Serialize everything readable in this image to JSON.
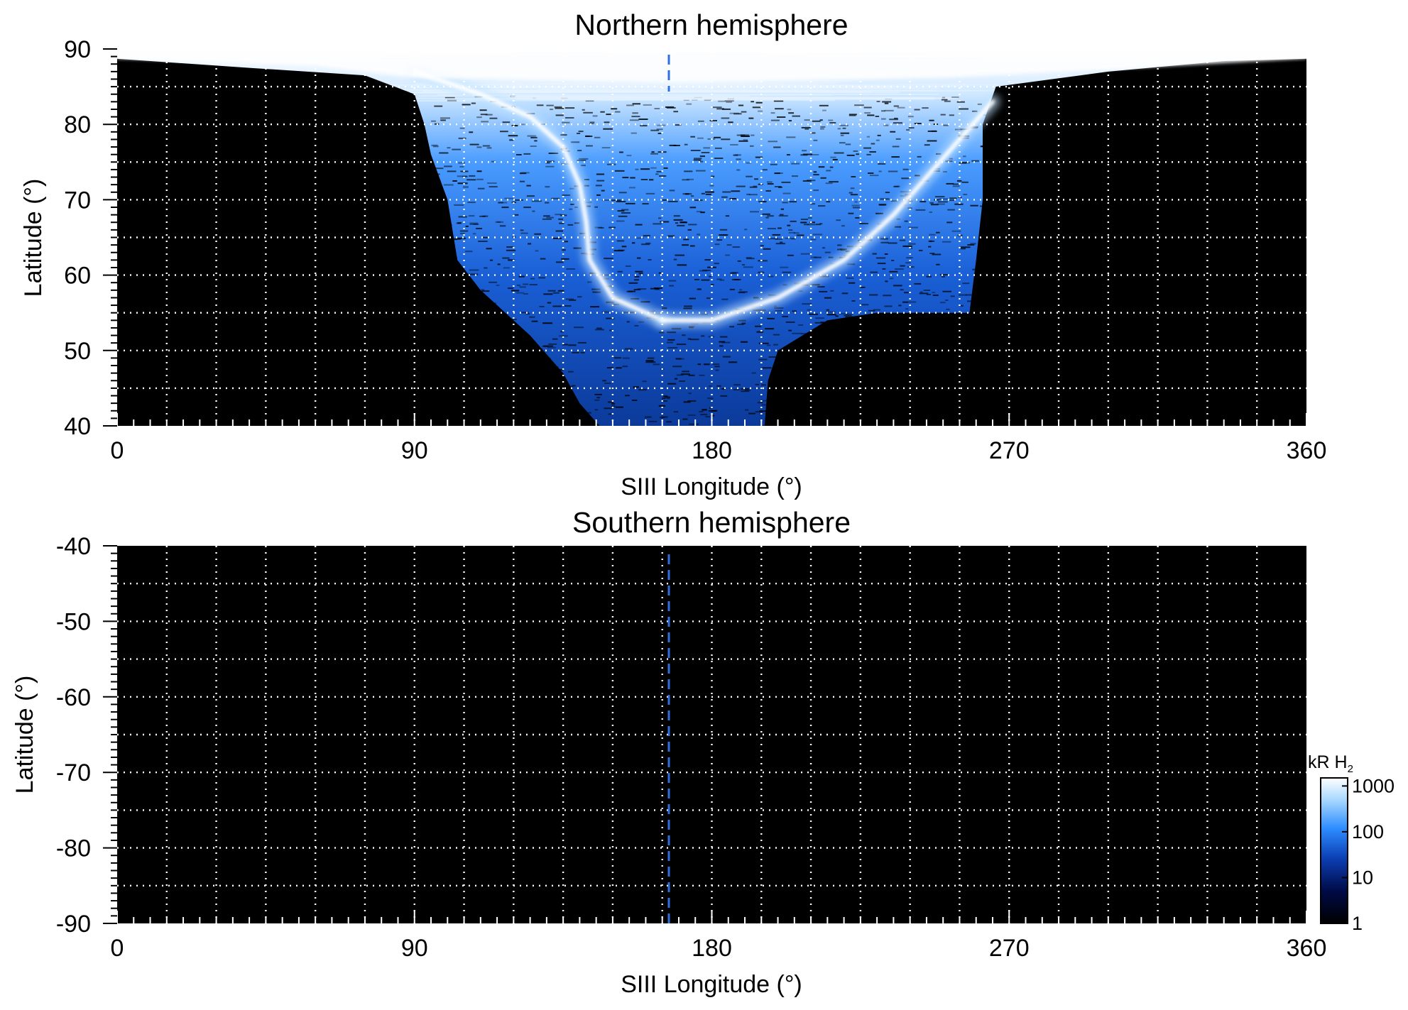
{
  "chart_data": [
    {
      "type": "heatmap",
      "title": "Northern hemisphere",
      "xlabel": "SIII Longitude (°)",
      "ylabel": "Latitude (°)",
      "xlim": [
        0,
        360
      ],
      "ylim": [
        40,
        90
      ],
      "xticks": [
        0,
        90,
        180,
        270,
        360
      ],
      "yticks": [
        40,
        50,
        60,
        70,
        80,
        90
      ],
      "grid": true,
      "background": "#000000",
      "emission_extent": {
        "lon_min": 0,
        "lon_max": 360,
        "lat_min": 40,
        "lat_max": 90
      },
      "main_oval": [
        {
          "lon": 165,
          "lat": 54
        },
        {
          "lon": 160,
          "lat": 55
        },
        {
          "lon": 150,
          "lat": 57
        },
        {
          "lon": 143,
          "lat": 62
        },
        {
          "lon": 142,
          "lat": 67
        },
        {
          "lon": 140,
          "lat": 72
        },
        {
          "lon": 135,
          "lat": 77
        },
        {
          "lon": 125,
          "lat": 81
        },
        {
          "lon": 110,
          "lat": 84
        },
        {
          "lon": 90,
          "lat": 87
        },
        {
          "lon": 180,
          "lat": 54
        },
        {
          "lon": 200,
          "lat": 57
        },
        {
          "lon": 220,
          "lat": 62
        },
        {
          "lon": 235,
          "lat": 68
        },
        {
          "lon": 245,
          "lat": 73
        },
        {
          "lon": 255,
          "lat": 78
        },
        {
          "lon": 265,
          "lat": 83
        }
      ],
      "reference_longitude": 167
    },
    {
      "type": "heatmap",
      "title": "Southern hemisphere",
      "xlabel": "SIII Longitude (°)",
      "ylabel": "Latitude (°)",
      "xlim": [
        0,
        360
      ],
      "ylim": [
        -90,
        -40
      ],
      "xticks": [
        0,
        90,
        180,
        270,
        360
      ],
      "yticks": [
        -40,
        -50,
        -60,
        -70,
        -80,
        -90
      ],
      "grid": true,
      "background": "#000000",
      "reference_longitude": 167
    }
  ],
  "colorbar": {
    "label_text": "kR H",
    "label_sub": "2",
    "scale": "log",
    "range": [
      1,
      1500
    ],
    "ticks": [
      1,
      10,
      100,
      1000
    ],
    "tick_labels": [
      "1",
      "10",
      "100",
      "1000"
    ],
    "colors": [
      "#000000",
      "#000a45",
      "#0c3fb5",
      "#2c8cff",
      "#a8d8ff",
      "#ffffff"
    ]
  },
  "reference_line_color": "#2f6fe0",
  "grid_color": "#ffffff"
}
